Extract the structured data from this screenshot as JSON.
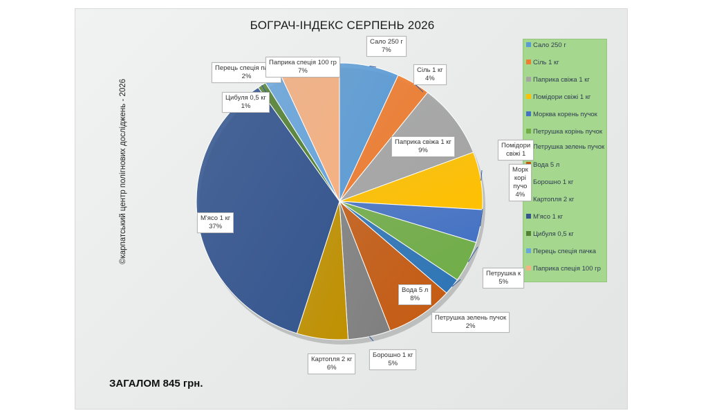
{
  "chart_data": {
    "type": "pie",
    "title": "БОГРАЧ-ІНДЕКС СЕРПЕНЬ 2026",
    "side_note": "©карпатський центр полігнових досліджень - 2026",
    "total_text": "ЗАГАЛОМ 845 грн.",
    "slices": [
      {
        "label": "Сало 250 г",
        "value": 7,
        "pct": "7%",
        "color": "#5b9bd5"
      },
      {
        "label": "Сіль 1 кг",
        "value": 4,
        "pct": "4%",
        "color": "#ed7d31"
      },
      {
        "label": "Паприка свіжа 1 кг",
        "value": 9,
        "pct": "9%",
        "color": "#a5a5a5"
      },
      {
        "label": "Помідори свіжі 1 кг",
        "value": 7,
        "pct": "7%",
        "color": "#ffc000"
      },
      {
        "label": "Морква корень пучок",
        "value": 4,
        "pct": "4%",
        "color": "#4472c4"
      },
      {
        "label": "Петрушка корінь пучок",
        "value": 5,
        "pct": "5%",
        "color": "#70ad47"
      },
      {
        "label": "Петрушка зелень пучок",
        "value": 2,
        "pct": "2%",
        "color": "#2e75b6"
      },
      {
        "label": "Вода 5 л",
        "value": 8,
        "pct": "8%",
        "color": "#c55a11"
      },
      {
        "label": "Борошно 1 кг",
        "value": 5,
        "pct": "5%",
        "color": "#7f7f7f"
      },
      {
        "label": "Картопля 2 кг",
        "value": 6,
        "pct": "6%",
        "color": "#bf9000"
      },
      {
        "label": "М'ясо 1 кг",
        "value": 37,
        "pct": "37%",
        "color": "#34558f"
      },
      {
        "label": "Цибуля 0,5 кг",
        "value": 1,
        "pct": "1%",
        "color": "#548235"
      },
      {
        "label": "Перець спеція пачка",
        "value": 2,
        "pct": "2%",
        "color": "#6aa6dc"
      },
      {
        "label": "Паприка спеція 100 гр",
        "value": 7,
        "pct": "7%",
        "color": "#f4b183"
      }
    ],
    "label_text": {
      "0": [
        "Сало 250 г",
        "7%"
      ],
      "1": [
        "Сіль 1 кг",
        "4%"
      ],
      "2": [
        "Паприка свіжа 1 кг",
        "9%"
      ],
      "3": [
        "Помідори",
        "свіжі 1"
      ],
      "4": [
        "Морк",
        "корі",
        "пучо",
        "4%"
      ],
      "5": [
        "Петрушка к",
        "5%"
      ],
      "6": [
        "Петрушка зелень пучок",
        "2%"
      ],
      "7": [
        "Вода 5 л",
        "8%"
      ],
      "8": [
        "Борошно 1 кг",
        "5%"
      ],
      "9": [
        "Картопля 2 кг",
        "6%"
      ],
      "10": [
        "М'ясо 1 кг",
        "37%"
      ],
      "11": [
        "Цибуля 0,5 кг",
        "1%"
      ],
      "12": [
        "Перець спеція пачка",
        "2%"
      ],
      "13": [
        "Паприка спеція 100 гр",
        "7%"
      ]
    },
    "legend": [
      "Сало 250 г",
      "Сіль 1 кг",
      "Паприка свіжа 1 кг",
      "Помідори свіжі 1 кг",
      "Морква корень пучок",
      "Петрушка корінь пучок",
      "Петрушка зелень пучок",
      "Вода 5 л",
      "Борошно 1 кг",
      "Картопля 2 кг",
      "М'ясо 1 кг",
      "Цибуля 0,5 кг",
      "Перець спеція пачка",
      "Паприка спеція 100 гр"
    ],
    "legend_position": "right"
  }
}
